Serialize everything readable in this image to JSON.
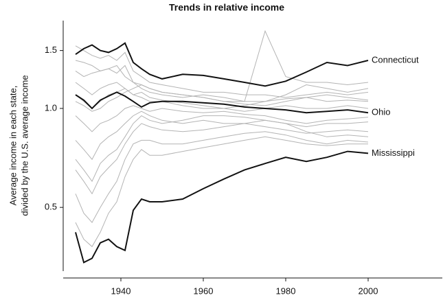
{
  "chart_data": {
    "type": "line",
    "title": "Trends in relative income",
    "ylabel": [
      "Average income in each state,",
      "divided by the U.S. average income"
    ],
    "x": [
      1929,
      1931,
      1933,
      1935,
      1937,
      1939,
      1941,
      1943,
      1945,
      1947,
      1950,
      1955,
      1960,
      1965,
      1970,
      1975,
      1980,
      1985,
      1990,
      1995,
      2000
    ],
    "xlim": [
      1926,
      2018
    ],
    "xticks": [
      1940,
      1960,
      1980,
      2000
    ],
    "ylim": [
      0.32,
      1.85
    ],
    "yticks": [
      0.5,
      {
        "value": 1,
        "label": "1.0"
      },
      1.5
    ],
    "yscale": "log",
    "grid": false,
    "legend": "line-end",
    "series": [
      {
        "color": "#b3b3b3",
        "values": [
          1.55,
          1.5,
          1.45,
          1.42,
          1.45,
          1.4,
          1.48,
          1.3,
          1.25,
          1.2,
          1.18,
          1.15,
          1.12,
          1.12,
          1.1,
          1.1,
          1.08,
          1.1,
          1.12,
          1.1,
          1.12
        ]
      },
      {
        "color": "#b3b3b3",
        "values": [
          1.3,
          1.25,
          1.28,
          1.3,
          1.32,
          1.35,
          1.25,
          1.2,
          1.15,
          1.12,
          1.1,
          1.08,
          1.1,
          1.08,
          1.05,
          1.05,
          1.07,
          1.08,
          1.05,
          1.06,
          1.05
        ]
      },
      {
        "color": "#b3b3b3",
        "values": [
          1.2,
          1.15,
          1.1,
          1.15,
          1.18,
          1.2,
          1.15,
          1.1,
          1.08,
          1.05,
          1.05,
          1.02,
          1.0,
          1.0,
          1.02,
          1.05,
          1.1,
          1.18,
          1.15,
          1.12,
          1.15
        ]
      },
      {
        "color": "#b3b3b3",
        "values": [
          0.95,
          0.9,
          0.85,
          0.9,
          0.92,
          0.95,
          1.0,
          1.02,
          1.0,
          0.98,
          1.0,
          0.98,
          0.97,
          0.98,
          0.96,
          0.95,
          0.92,
          0.9,
          0.92,
          0.93,
          0.94
        ]
      },
      {
        "color": "#b3b3b3",
        "values": [
          0.8,
          0.75,
          0.7,
          0.78,
          0.82,
          0.85,
          0.9,
          0.95,
          0.98,
          0.95,
          0.92,
          0.9,
          0.92,
          0.9,
          0.9,
          0.88,
          0.86,
          0.84,
          0.85,
          0.86,
          0.85
        ]
      },
      {
        "color": "#b3b3b3",
        "values": [
          0.65,
          0.6,
          0.55,
          0.62,
          0.66,
          0.7,
          0.78,
          0.85,
          0.9,
          0.88,
          0.86,
          0.85,
          0.86,
          0.88,
          0.9,
          0.92,
          0.9,
          0.85,
          0.82,
          0.83,
          0.82
        ]
      },
      {
        "color": "#b3b3b3",
        "values": [
          0.55,
          0.48,
          0.45,
          0.5,
          0.55,
          0.6,
          0.7,
          0.78,
          0.8,
          0.8,
          0.78,
          0.78,
          0.8,
          0.82,
          0.84,
          0.85,
          0.83,
          0.8,
          0.78,
          0.8,
          0.79
        ]
      },
      {
        "color": "#b3b3b3",
        "values": [
          1.05,
          1.02,
          0.98,
          1.0,
          1.05,
          1.08,
          1.12,
          1.15,
          1.18,
          1.15,
          1.12,
          1.1,
          1.08,
          1.05,
          1.03,
          1.02,
          1.05,
          1.08,
          1.1,
          1.08,
          1.06
        ]
      },
      {
        "color": "#b3b3b3",
        "values": [
          0.45,
          0.4,
          0.38,
          0.42,
          0.48,
          0.52,
          0.62,
          0.7,
          0.75,
          0.72,
          0.72,
          0.74,
          0.76,
          0.78,
          0.8,
          0.82,
          0.8,
          0.78,
          0.77,
          0.78,
          0.78
        ]
      },
      {
        "color": "#b3b3b3",
        "values": [
          1.4,
          1.38,
          1.35,
          1.3,
          1.32,
          1.28,
          1.35,
          1.2,
          1.18,
          1.15,
          1.12,
          1.1,
          1.08,
          1.05,
          1.05,
          1.72,
          1.25,
          1.2,
          1.2,
          1.18,
          1.2
        ]
      },
      {
        "color": "#b3b3b3",
        "values": [
          0.7,
          0.65,
          0.6,
          0.68,
          0.72,
          0.75,
          0.82,
          0.9,
          0.95,
          0.92,
          0.9,
          0.92,
          0.95,
          0.95,
          0.94,
          0.92,
          0.9,
          0.88,
          0.9,
          0.9,
          0.91
        ]
      },
      {
        "color": "#b3b3b3",
        "values": [
          1.1,
          1.05,
          1.0,
          1.05,
          1.1,
          1.12,
          1.15,
          1.1,
          1.12,
          1.08,
          1.06,
          1.04,
          1.02,
          1.0,
          0.98,
          1.0,
          1.02,
          1.0,
          1.0,
          1.02,
          1.0
        ]
      },
      {
        "name": "Connecticut",
        "color": "#111111",
        "values": [
          1.46,
          1.52,
          1.56,
          1.5,
          1.48,
          1.52,
          1.58,
          1.38,
          1.32,
          1.27,
          1.23,
          1.27,
          1.26,
          1.23,
          1.2,
          1.17,
          1.21,
          1.29,
          1.38,
          1.35,
          1.4
        ]
      },
      {
        "name": "Ohio",
        "color": "#111111",
        "values": [
          1.1,
          1.06,
          1.0,
          1.06,
          1.09,
          1.12,
          1.09,
          1.05,
          1.01,
          1.04,
          1.05,
          1.05,
          1.04,
          1.03,
          1.01,
          1.0,
          0.99,
          0.97,
          0.98,
          0.99,
          0.97
        ]
      },
      {
        "name": "Mississippi",
        "color": "#111111",
        "values": [
          0.42,
          0.34,
          0.35,
          0.39,
          0.4,
          0.38,
          0.37,
          0.49,
          0.53,
          0.52,
          0.52,
          0.53,
          0.57,
          0.61,
          0.65,
          0.68,
          0.71,
          0.69,
          0.71,
          0.74,
          0.73
        ]
      }
    ]
  }
}
